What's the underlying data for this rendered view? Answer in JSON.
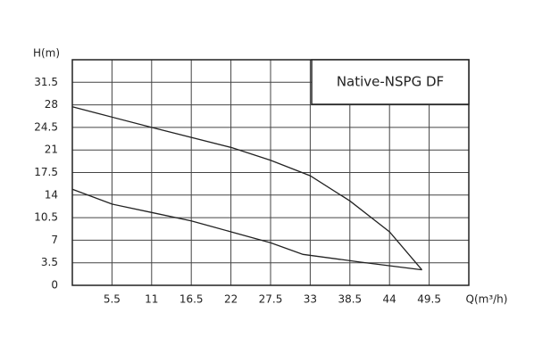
{
  "chart_data": {
    "type": "line",
    "title": "Native-NSPG DF",
    "y_label": "H(m)",
    "x_label": "Q(m³/h)",
    "xlim": [
      0,
      55
    ],
    "xticks": [
      5.5,
      11,
      16.5,
      22,
      27.5,
      33,
      38.5,
      44,
      49.5
    ],
    "ylim": [
      0,
      35
    ],
    "yticks": [
      0,
      3.5,
      7,
      10.5,
      14,
      17.5,
      21,
      24.5,
      28,
      31.5
    ],
    "grid": true,
    "series": [
      {
        "color": "#222222",
        "x": [
          0,
          11,
          22,
          27.5,
          33,
          38.5,
          44,
          48.5
        ],
        "values": [
          27.7,
          24.5,
          21.4,
          19.4,
          17,
          13.1,
          8.3,
          2.4
        ]
      },
      {
        "color": "#222222",
        "x": [
          0,
          5.5,
          11,
          16.5,
          22,
          27.5,
          32,
          40,
          48.5
        ],
        "values": [
          14.9,
          12.6,
          11.3,
          10,
          8.3,
          6.6,
          4.8,
          3.6,
          2.4
        ]
      }
    ]
  }
}
